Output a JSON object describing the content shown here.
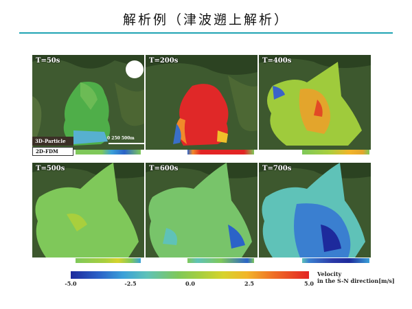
{
  "title": "解析例（津波遡上解析）",
  "panels": [
    {
      "time_label": "T=50s"
    },
    {
      "time_label": "T=200s"
    },
    {
      "time_label": "T=400s"
    },
    {
      "time_label": "T=500s"
    },
    {
      "time_label": "T=600s"
    },
    {
      "time_label": "T=700s"
    }
  ],
  "legend": {
    "model_a": "3D-Particle",
    "model_b": "2D-FDM"
  },
  "scale_bar": {
    "label": "0  250  500m"
  },
  "colorbar": {
    "ticks": [
      "-5.0",
      "-2.5",
      "0.0",
      "2.5",
      "5.0"
    ],
    "label_line1": "Velocity",
    "label_line2": "in the S-N direction[m/s]",
    "colors": [
      "#1d2a9c",
      "#3aa0d8",
      "#7fc85a",
      "#d7d32c",
      "#f2b52a",
      "#e32424"
    ]
  }
}
